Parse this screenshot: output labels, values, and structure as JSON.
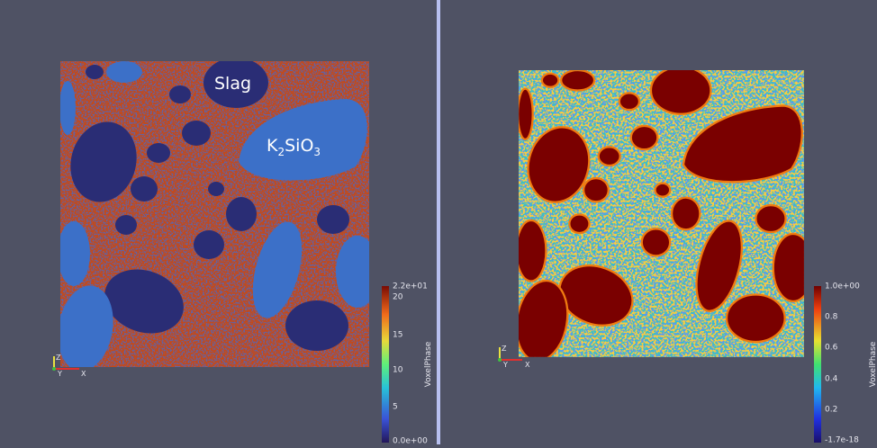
{
  "left_view": {
    "labels": {
      "slag": "Slag",
      "k2sio3": {
        "k": "K",
        "k_sub": "2",
        "sio": "SiO",
        "o_sub": "3"
      }
    },
    "colorbar": {
      "title": "VoxelPhase",
      "ticks": [
        "2.2e+01",
        "20",
        "15",
        "10",
        "5",
        "0.0e+00"
      ]
    },
    "axes": {
      "z": "Z",
      "y": "Y",
      "x": "X"
    }
  },
  "right_view": {
    "colorbar": {
      "title": "VoxelPhase",
      "ticks": [
        "1.0e+00",
        "0.8",
        "0.6",
        "0.4",
        "0.2",
        "-1.7e-18"
      ]
    },
    "axes": {
      "z": "Z",
      "y": "Y",
      "x": "X"
    }
  }
}
